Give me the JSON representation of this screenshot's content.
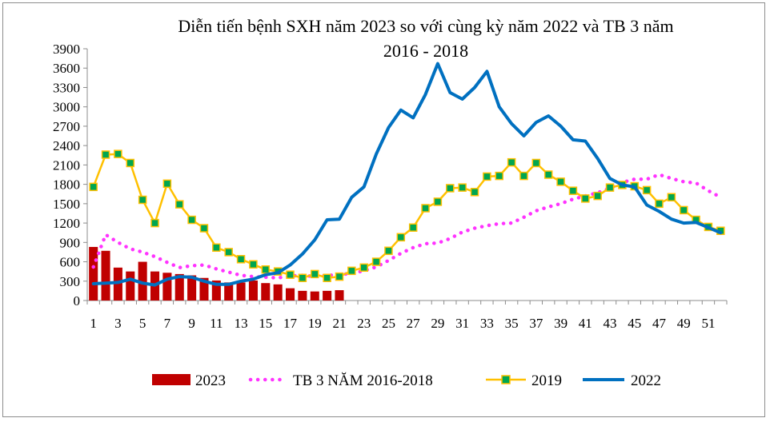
{
  "chart_data": {
    "type": "bar+line",
    "title_line1": "Diễn tiến bệnh SXH năm 2023 so với cùng kỳ năm 2022 và TB 3 năm",
    "title_line2": "2016 - 2018",
    "ylim": [
      0,
      3900
    ],
    "yticks": [
      "0",
      "300",
      "600",
      "900",
      "1200",
      "1500",
      "1800",
      "2100",
      "2400",
      "2700",
      "3000",
      "3300",
      "3600",
      "3900"
    ],
    "xtick_labels": [
      "1",
      "3",
      "5",
      "7",
      "9",
      "11",
      "13",
      "15",
      "17",
      "19",
      "21",
      "23",
      "25",
      "27",
      "29",
      "31",
      "33",
      "35",
      "37",
      "39",
      "41",
      "43",
      "45",
      "47",
      "49",
      "51"
    ],
    "grid": false,
    "legend_position": "bottom",
    "series": [
      {
        "name": "2023",
        "kind": "bar",
        "color": "#c00000",
        "values": [
          830,
          770,
          510,
          450,
          600,
          450,
          430,
          410,
          390,
          350,
          310,
          280,
          280,
          310,
          270,
          250,
          190,
          150,
          140,
          150,
          160
        ]
      },
      {
        "name": "TB 3 NĂM 2016-2018",
        "kind": "dotted-line",
        "color": "#ff33ff",
        "values": [
          520,
          1020,
          900,
          800,
          750,
          680,
          590,
          510,
          540,
          550,
          490,
          440,
          390,
          370,
          360,
          350,
          380,
          390,
          370,
          390,
          400,
          420,
          460,
          520,
          620,
          730,
          820,
          880,
          890,
          960,
          1060,
          1120,
          1160,
          1190,
          1200,
          1290,
          1390,
          1450,
          1500,
          1570,
          1620,
          1670,
          1740,
          1830,
          1880,
          1880,
          1950,
          1890,
          1840,
          1820,
          1700,
          1600
        ]
      },
      {
        "name": "2019",
        "kind": "marker-line",
        "color": "#ffc000",
        "marker_color": "#00a651",
        "values": [
          1760,
          2260,
          2270,
          2130,
          1560,
          1200,
          1810,
          1490,
          1250,
          1120,
          820,
          750,
          640,
          560,
          480,
          450,
          400,
          350,
          410,
          350,
          370,
          460,
          510,
          600,
          770,
          980,
          1130,
          1430,
          1530,
          1740,
          1750,
          1680,
          1920,
          1930,
          2140,
          1930,
          2130,
          1950,
          1840,
          1700,
          1580,
          1620,
          1750,
          1790,
          1770,
          1710,
          1500,
          1600,
          1400,
          1250,
          1140,
          1080
        ]
      },
      {
        "name": "2022",
        "kind": "line",
        "color": "#0070c0",
        "values": [
          260,
          270,
          280,
          330,
          270,
          240,
          330,
          370,
          360,
          300,
          250,
          250,
          300,
          330,
          400,
          430,
          550,
          720,
          940,
          1250,
          1260,
          1600,
          1760,
          2270,
          2680,
          2950,
          2830,
          3190,
          3670,
          3220,
          3120,
          3300,
          3550,
          3000,
          2740,
          2550,
          2760,
          2860,
          2700,
          2490,
          2470,
          2200,
          1890,
          1790,
          1760,
          1480,
          1380,
          1260,
          1200,
          1210,
          1130,
          1050
        ]
      }
    ]
  }
}
